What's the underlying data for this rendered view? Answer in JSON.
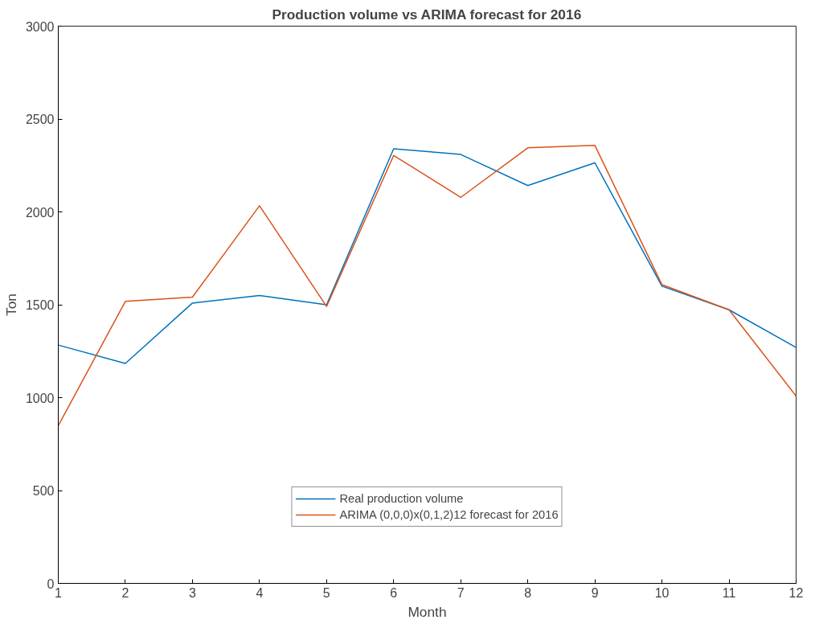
{
  "chart_data": {
    "type": "line",
    "title": "Production volume vs ARIMA forecast for 2016",
    "xlabel": "Month",
    "ylabel": "Ton",
    "x": [
      1,
      2,
      3,
      4,
      5,
      6,
      7,
      8,
      9,
      10,
      11,
      12
    ],
    "series": [
      {
        "name": "Real production volume",
        "color": "#0072bd",
        "values": [
          1283,
          1184,
          1509,
          1550,
          1500,
          2340,
          2309,
          2142,
          2264,
          1600,
          1473,
          1270
        ]
      },
      {
        "name": "ARIMA (0,0,0)x(0,1,2)12 forecast for 2016",
        "color": "#d95319",
        "values": [
          849,
          1518,
          1541,
          2033,
          1491,
          2304,
          2078,
          2345,
          2358,
          1608,
          1473,
          1008
        ]
      }
    ],
    "xlim": [
      1,
      12
    ],
    "xticks": [
      1,
      2,
      3,
      4,
      5,
      6,
      7,
      8,
      9,
      10,
      11,
      12
    ],
    "ylim": [
      0,
      3000
    ],
    "yticks": [
      0,
      500,
      1000,
      1500,
      2000,
      2500,
      3000
    ],
    "grid": false,
    "legend": "bottom",
    "marker": "none",
    "line_style": "solid"
  }
}
